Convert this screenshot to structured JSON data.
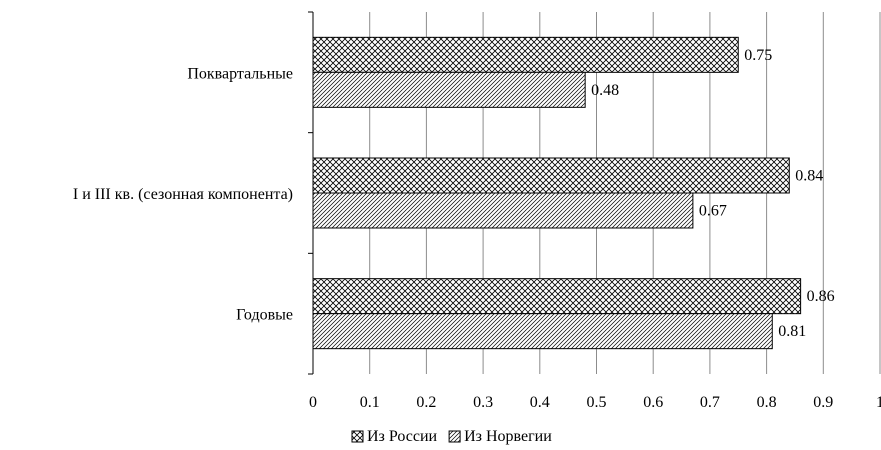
{
  "chart_data": {
    "type": "bar",
    "orientation": "horizontal",
    "categories": [
      "Поквартальные",
      "I и III кв. (сезонная компонента)",
      "Годовые"
    ],
    "series": [
      {
        "name": "Из России",
        "values": [
          0.75,
          0.84,
          0.86
        ],
        "pattern": "crosshatch"
      },
      {
        "name": "Из Норвегии",
        "values": [
          0.48,
          0.67,
          0.81
        ],
        "pattern": "diagonal-hatch"
      }
    ],
    "xlim": [
      0,
      1
    ],
    "xticks": [
      "0",
      "0.1",
      "0.2",
      "0.3",
      "0.4",
      "0.5",
      "0.6",
      "0.7",
      "0.8",
      "0.9",
      "1"
    ],
    "data_labels": {
      "Из России": [
        "0.75",
        "0.84",
        "0.86"
      ],
      "Из Норвегии": [
        "0.48",
        "0.67",
        "0.81"
      ]
    },
    "grid": "vertical",
    "legend_position": "bottom",
    "title": "",
    "xlabel": "",
    "ylabel": ""
  }
}
